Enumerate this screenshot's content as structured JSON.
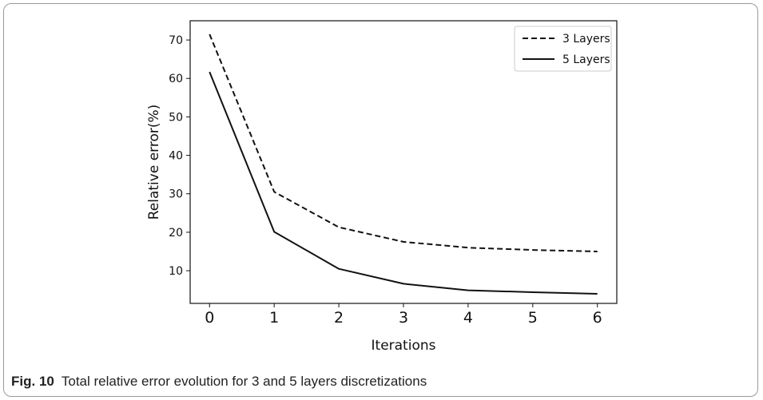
{
  "caption": {
    "label": "Fig. 10",
    "text": "Total relative error evolution for 3 and 5 layers discretizations"
  },
  "chart_data": {
    "type": "line",
    "title": "",
    "xlabel": "Iterations",
    "ylabel": "Relative error(%)",
    "x": [
      0,
      1,
      2,
      3,
      4,
      5,
      6
    ],
    "xticks": [
      0,
      1,
      2,
      3,
      4,
      5,
      6
    ],
    "yticks": [
      10,
      20,
      30,
      40,
      50,
      60,
      70
    ],
    "xlim": [
      -0.3,
      6.3
    ],
    "ylim": [
      1.5,
      75
    ],
    "grid": false,
    "legend_position": "top-right",
    "series": [
      {
        "name": "3 Layers",
        "style": "dashed",
        "color": "#111111",
        "values": [
          71.5,
          30.5,
          21.3,
          17.5,
          16.0,
          15.4,
          15.0
        ]
      },
      {
        "name": "5 Layers",
        "style": "solid",
        "color": "#111111",
        "values": [
          61.7,
          20.1,
          10.5,
          6.6,
          4.9,
          4.4,
          4.0
        ]
      }
    ]
  }
}
